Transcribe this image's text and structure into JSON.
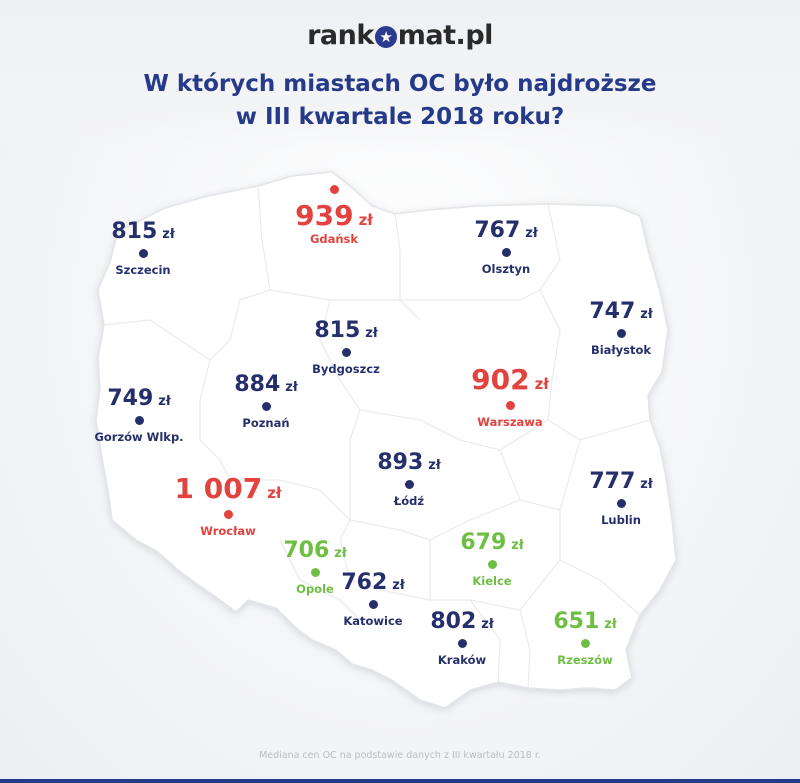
{
  "logo": {
    "left": "rank",
    "right": "mat.pl"
  },
  "title": {
    "line1": "W których miastach OC było najdroższe",
    "line2": "w III kwartale 2018 roku?"
  },
  "unit": "zł",
  "cities": [
    {
      "name": "Gdańsk",
      "price": "939",
      "color": "red"
    },
    {
      "name": "Szczecin",
      "price": "815",
      "color": "navy"
    },
    {
      "name": "Olsztyn",
      "price": "767",
      "color": "navy"
    },
    {
      "name": "Bydgoszcz",
      "price": "815",
      "color": "navy"
    },
    {
      "name": "Białystok",
      "price": "747",
      "color": "navy"
    },
    {
      "name": "Poznań",
      "price": "884",
      "color": "navy"
    },
    {
      "name": "Warszawa",
      "price": "902",
      "color": "red"
    },
    {
      "name": "Gorzów Wlkp.",
      "price": "749",
      "color": "navy"
    },
    {
      "name": "Łódź",
      "price": "893",
      "color": "navy"
    },
    {
      "name": "Wrocław",
      "price": "1 007",
      "color": "red"
    },
    {
      "name": "Lublin",
      "price": "777",
      "color": "navy"
    },
    {
      "name": "Opole",
      "price": "706",
      "color": "green"
    },
    {
      "name": "Kielce",
      "price": "679",
      "color": "green"
    },
    {
      "name": "Katowice",
      "price": "762",
      "color": "navy"
    },
    {
      "name": "Kraków",
      "price": "802",
      "color": "navy"
    },
    {
      "name": "Rzeszów",
      "price": "651",
      "color": "green"
    }
  ],
  "footer": "Mediana cen OC na podstawie danych z III kwartału 2018 r.",
  "colors": {
    "navy": "#252f6b",
    "red": "#e2433f",
    "green": "#6fbe44",
    "title": "#263a8a"
  }
}
